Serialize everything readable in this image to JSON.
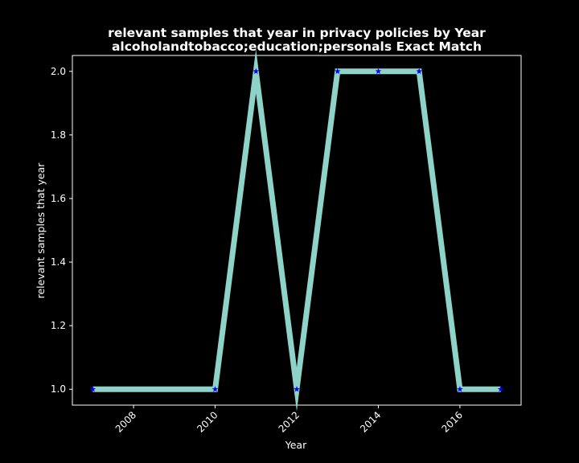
{
  "chart_data": {
    "type": "line",
    "title": "relevant samples that year in privacy policies by Year",
    "subtitle": "alcoholandtobacco;education;personals Exact Match",
    "xlabel": "Year",
    "ylabel": "relevant samples that year",
    "x": [
      2007,
      2010,
      2011,
      2012,
      2013,
      2014,
      2015,
      2016,
      2017
    ],
    "series": [
      {
        "values": [
          1,
          1,
          2,
          1,
          2,
          2,
          2,
          1,
          1
        ]
      }
    ],
    "xlim": [
      2006.5,
      2017.5
    ],
    "ylim": [
      0.95,
      2.05
    ],
    "xticks": [
      2008,
      2010,
      2012,
      2014,
      2016
    ],
    "yticks": [
      1.0,
      1.2,
      1.4,
      1.6,
      1.8,
      2.0
    ],
    "ytick_labels": [
      "1.0",
      "1.2",
      "1.4",
      "1.6",
      "1.8",
      "2.0"
    ],
    "grid": false,
    "line_color": "#8dd3c7",
    "marker_color": "#0000ff",
    "marker": "star",
    "background": "#000000",
    "axes_color": "#ffffff"
  }
}
